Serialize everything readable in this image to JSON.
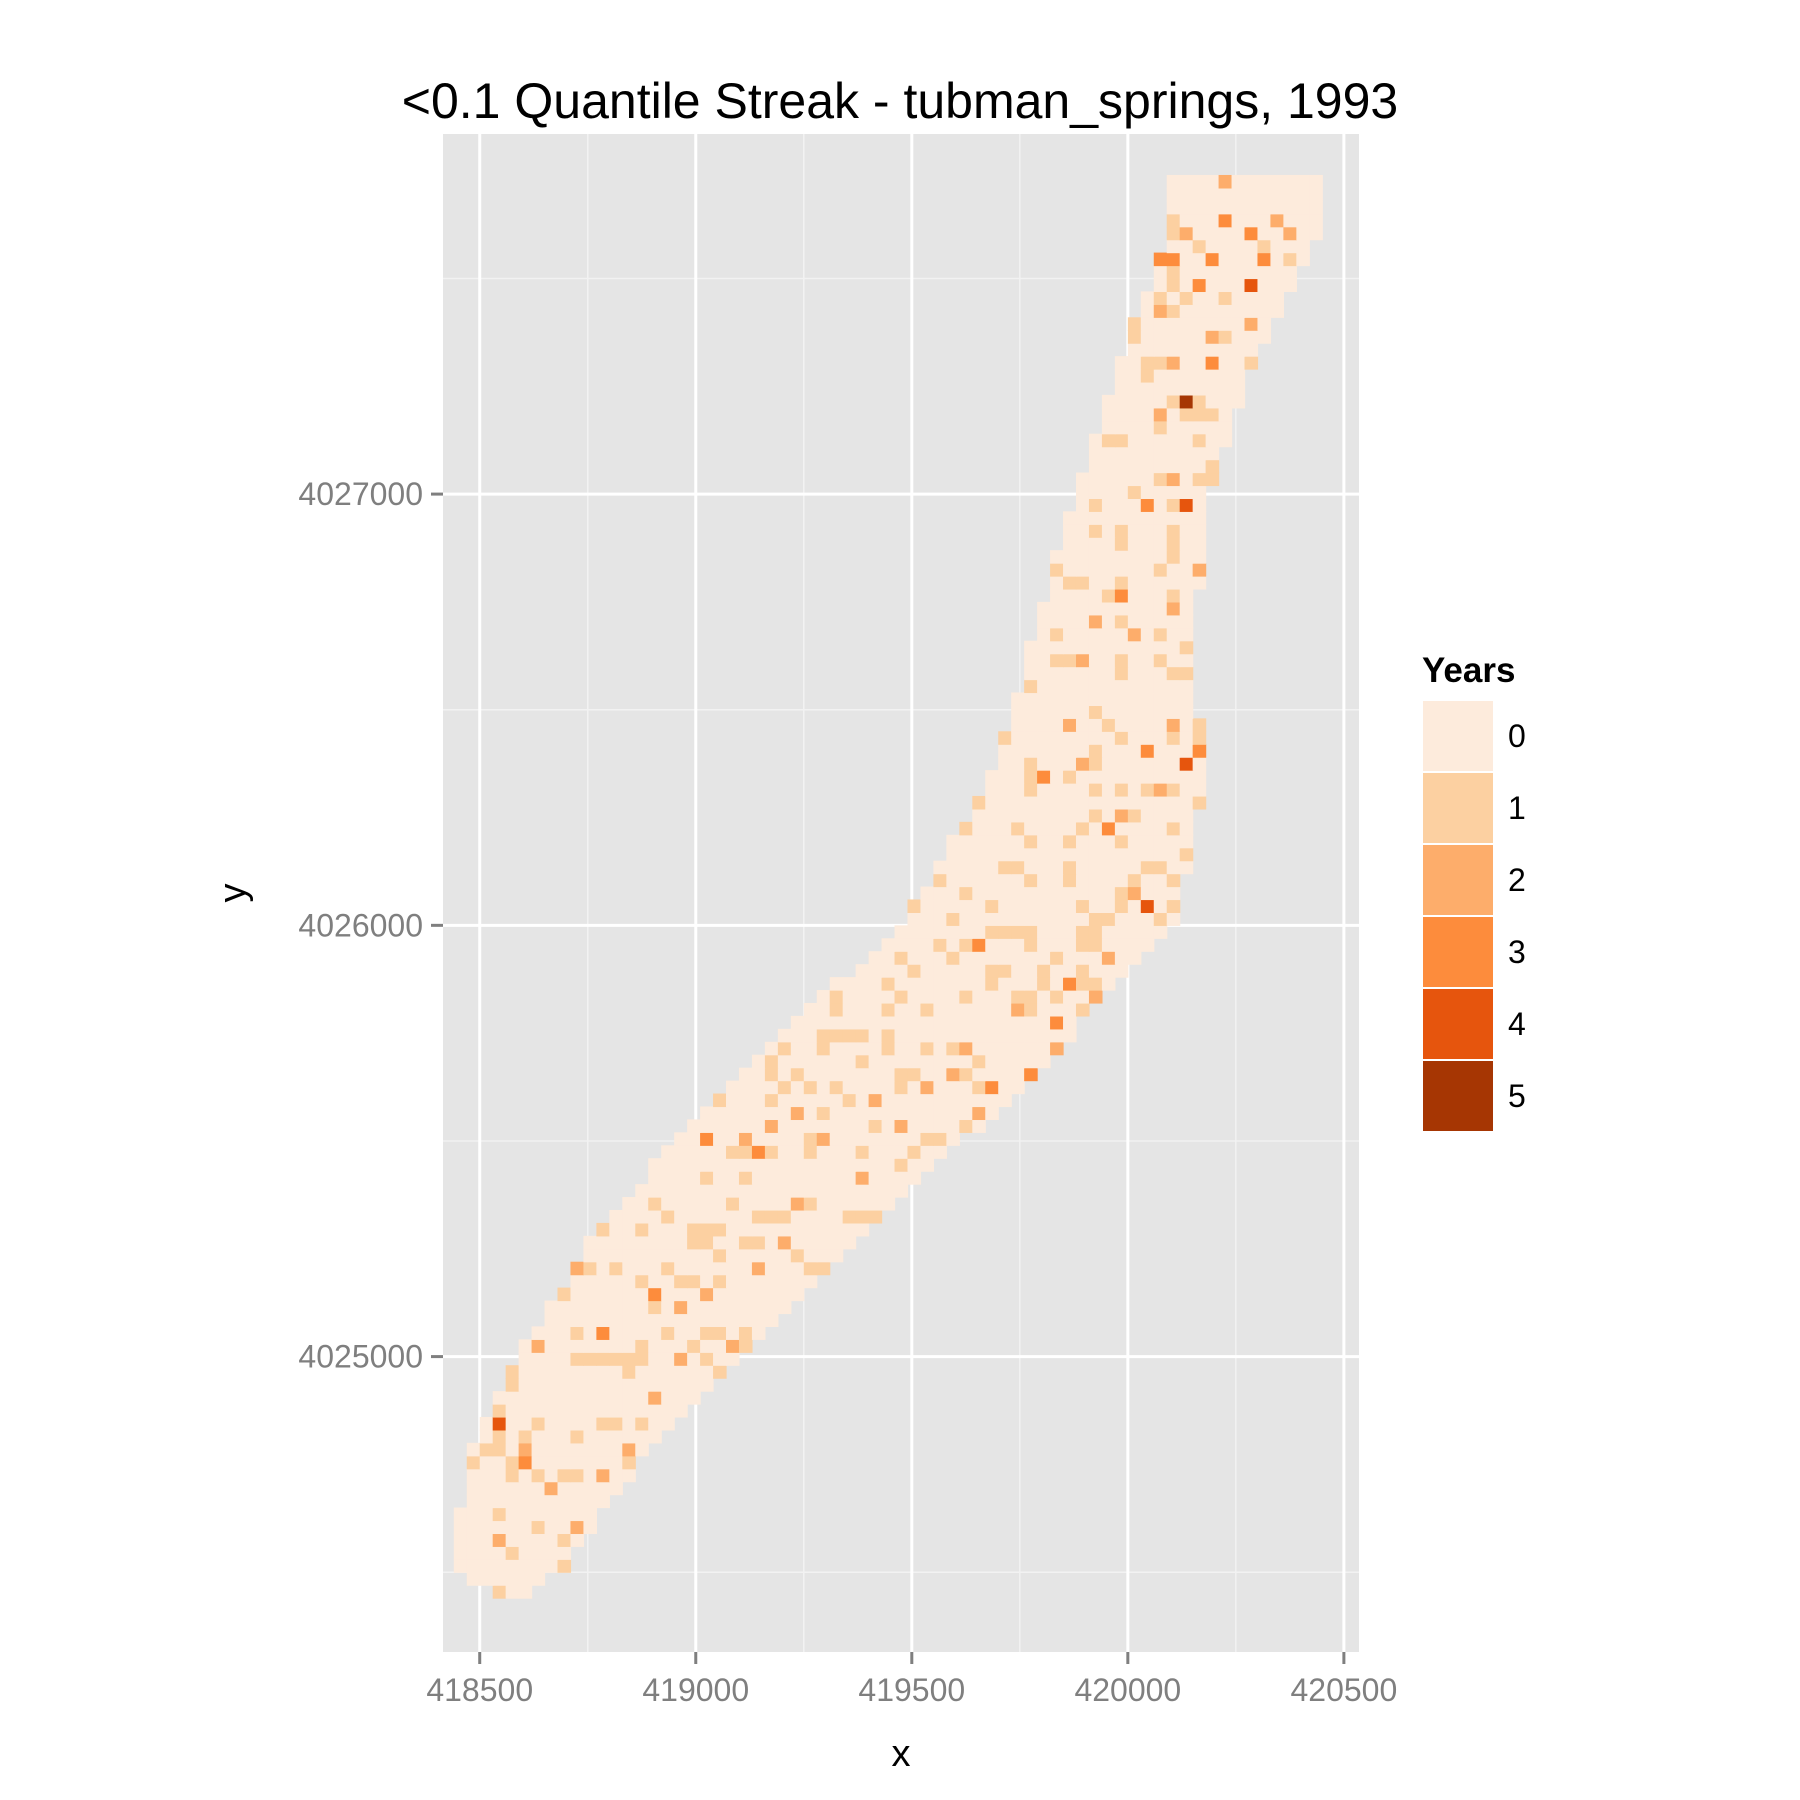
{
  "chart_data": {
    "type": "heatmap",
    "title": "<0.1 Quantile Streak - tubman_springs, 1993",
    "xlabel": "x",
    "ylabel": "y",
    "xlim": [
      418415,
      420535
    ],
    "ylim": [
      4024315,
      4027835
    ],
    "x_ticks": [
      418500,
      419000,
      419500,
      420000,
      420500
    ],
    "x_tick_labels": [
      "418500",
      "419000",
      "419500",
      "420000",
      "420500"
    ],
    "y_ticks": [
      4025000,
      4026000,
      4027000
    ],
    "y_tick_labels": [
      "4025000",
      "4026000",
      "4027000"
    ],
    "grid": true,
    "legend": {
      "title": "Years",
      "position": "right",
      "levels": [
        {
          "label": "0",
          "color": "#fdebdc"
        },
        {
          "label": "1",
          "color": "#fcd0a1"
        },
        {
          "label": "2",
          "color": "#fdad6b"
        },
        {
          "label": "3",
          "color": "#fd8c3c"
        },
        {
          "label": "4",
          "color": "#e6550d"
        },
        {
          "label": "5",
          "color": "#a63603"
        }
      ]
    },
    "cell_size": 30,
    "region_centerline": [
      [
        418560,
        4024500,
        120
      ],
      [
        418700,
        4024800,
        200
      ],
      [
        418900,
        4025050,
        260
      ],
      [
        419100,
        4025300,
        300
      ],
      [
        419300,
        4025500,
        320
      ],
      [
        419550,
        4025750,
        320
      ],
      [
        419800,
        4026000,
        300
      ],
      [
        419920,
        4026300,
        240
      ],
      [
        419960,
        4026600,
        180
      ],
      [
        420020,
        4026950,
        140
      ],
      [
        420120,
        4027250,
        140
      ],
      [
        420270,
        4027600,
        160
      ]
    ],
    "streak_cells": [
      [
        420130,
        4027200,
        5
      ],
      [
        419870,
        4025640,
        4
      ],
      [
        419890,
        4025660,
        4
      ],
      [
        420110,
        4026960,
        4
      ],
      [
        420130,
        4026370,
        4
      ],
      [
        420260,
        4027270,
        4
      ],
      [
        420020,
        4026030,
        4
      ],
      [
        418540,
        4024830,
        4
      ],
      [
        420280,
        4027480,
        4
      ],
      [
        419680,
        4025600,
        3
      ],
      [
        419770,
        4025640,
        3
      ],
      [
        419790,
        4025600,
        3
      ],
      [
        419830,
        4025560,
        3
      ],
      [
        420050,
        4027520,
        3
      ],
      [
        420080,
        4027520,
        3
      ],
      [
        420160,
        4027460,
        3
      ],
      [
        420190,
        4027520,
        3
      ],
      [
        420220,
        4027620,
        3
      ],
      [
        420260,
        4027580,
        3
      ],
      [
        420310,
        4027520,
        3
      ],
      [
        420170,
        4027300,
        3
      ],
      [
        420230,
        4027140,
        3
      ],
      [
        420200,
        4026920,
        3
      ],
      [
        420040,
        4026960,
        3
      ],
      [
        419960,
        4026760,
        3
      ],
      [
        420040,
        4026390,
        3
      ],
      [
        420160,
        4026390,
        3
      ],
      [
        419830,
        4025770,
        3
      ],
      [
        419850,
        4025860,
        3
      ],
      [
        418600,
        4024740,
        3
      ],
      [
        418700,
        4024540,
        3
      ],
      [
        418770,
        4025040,
        3
      ],
      [
        418880,
        4025130,
        3
      ],
      [
        419000,
        4025480,
        3
      ],
      [
        419140,
        4025460,
        3
      ],
      [
        419280,
        4025150,
        3
      ],
      [
        419520,
        4025300,
        3
      ],
      [
        419630,
        4025950,
        3
      ],
      [
        419780,
        4026340,
        3
      ],
      [
        419950,
        4026210,
        3
      ],
      [
        420010,
        4025870,
        3
      ],
      [
        418510,
        4024870,
        2
      ],
      [
        418580,
        4024780,
        2
      ],
      [
        418640,
        4024670,
        2
      ],
      [
        418720,
        4024600,
        2
      ],
      [
        418780,
        4024700,
        2
      ],
      [
        418840,
        4024780,
        2
      ],
      [
        418890,
        4024890,
        2
      ],
      [
        418940,
        4024970,
        2
      ],
      [
        418960,
        4025090,
        2
      ],
      [
        419020,
        4025130,
        2
      ],
      [
        419080,
        4025000,
        2
      ],
      [
        419130,
        4025180,
        2
      ],
      [
        419180,
        4025240,
        2
      ],
      [
        419220,
        4025330,
        2
      ],
      [
        419090,
        4025500,
        2
      ],
      [
        419160,
        4025510,
        2
      ],
      [
        419230,
        4025560,
        2
      ],
      [
        419290,
        4025480,
        2
      ],
      [
        419380,
        4025410,
        2
      ],
      [
        419460,
        4025520,
        2
      ],
      [
        419520,
        4025600,
        2
      ],
      [
        419590,
        4025640,
        2
      ],
      [
        419640,
        4025560,
        2
      ],
      [
        419710,
        4025500,
        2
      ],
      [
        419760,
        4025440,
        2
      ],
      [
        419820,
        4025700,
        2
      ],
      [
        419900,
        4025810,
        2
      ],
      [
        419930,
        4025900,
        2
      ],
      [
        420000,
        4026070,
        2
      ],
      [
        419980,
        4026250,
        2
      ],
      [
        420060,
        4026300,
        2
      ],
      [
        420100,
        4026460,
        2
      ],
      [
        419880,
        4026370,
        2
      ],
      [
        419840,
        4026450,
        2
      ],
      [
        419890,
        4026590,
        2
      ],
      [
        419910,
        4026700,
        2
      ],
      [
        419990,
        4026660,
        2
      ],
      [
        420080,
        4026730,
        2
      ],
      [
        420150,
        4026800,
        2
      ],
      [
        420180,
        4026660,
        2
      ],
      [
        420250,
        4026820,
        2
      ],
      [
        420100,
        4027020,
        2
      ],
      [
        420220,
        4027020,
        2
      ],
      [
        420280,
        4027220,
        2
      ],
      [
        420070,
        4027170,
        2
      ],
      [
        420100,
        4027300,
        2
      ],
      [
        420180,
        4027360,
        2
      ],
      [
        420060,
        4027400,
        2
      ],
      [
        420120,
        4027600,
        2
      ],
      [
        420200,
        4027700,
        2
      ],
      [
        420320,
        4027620,
        2
      ],
      [
        420360,
        4027580,
        2
      ],
      [
        420270,
        4027370,
        2
      ],
      [
        419730,
        4025800,
        2
      ],
      [
        419600,
        4025700,
        2
      ],
      [
        419400,
        4025580,
        2
      ],
      [
        418700,
        4025180,
        2
      ],
      [
        418620,
        4025000,
        2
      ],
      [
        418540,
        4024560,
        2
      ]
    ]
  }
}
